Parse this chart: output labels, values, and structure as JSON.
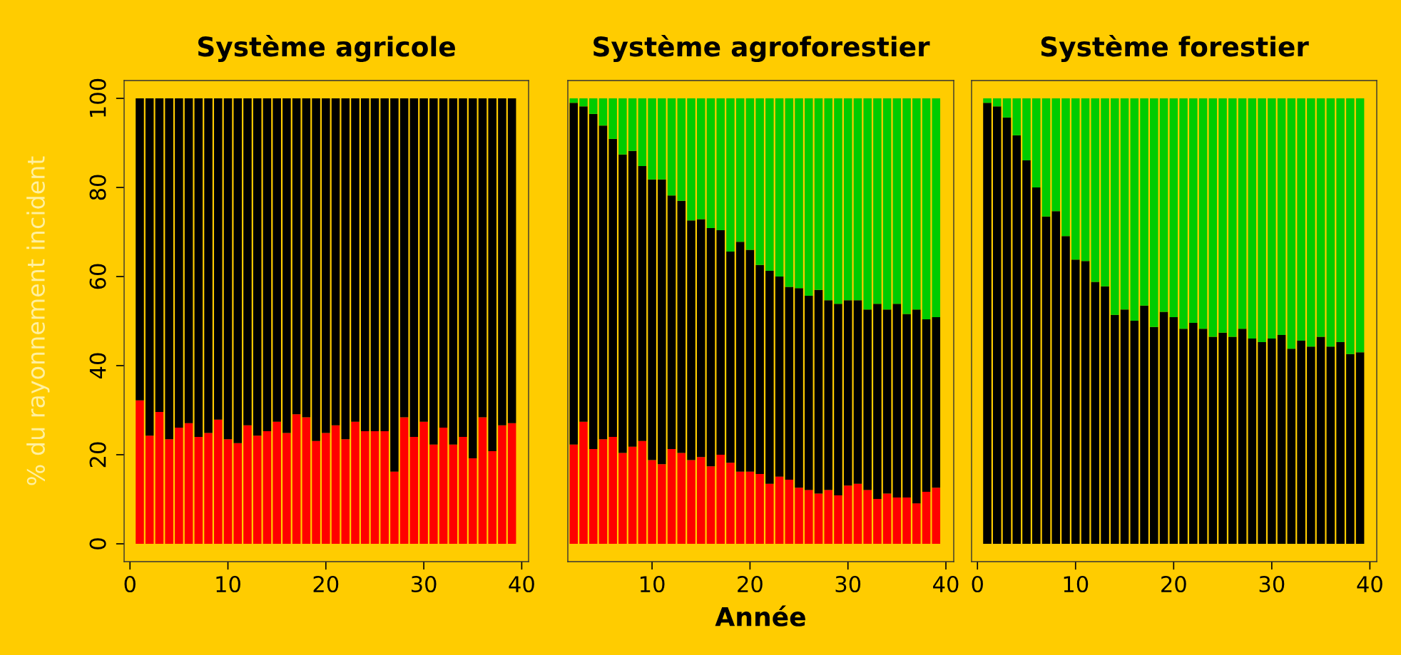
{
  "chart_data": [
    {
      "type": "bar",
      "stacked": true,
      "title": "Système agricole",
      "ylabel": "% du rayonnement incident",
      "x": [
        1,
        2,
        3,
        4,
        5,
        6,
        7,
        8,
        9,
        10,
        11,
        12,
        13,
        14,
        15,
        16,
        17,
        18,
        19,
        20,
        21,
        22,
        23,
        24,
        25,
        26,
        27,
        28,
        29,
        30,
        31,
        32,
        33,
        34,
        35,
        36,
        37,
        38,
        39
      ],
      "series": [
        {
          "color": "#ff0000",
          "values": [
            32.2,
            24.3,
            29.6,
            23.5,
            26.1,
            27.1,
            24.0,
            24.9,
            27.9,
            23.5,
            22.6,
            26.6,
            24.3,
            25.3,
            27.4,
            24.9,
            29.1,
            28.4,
            23.1,
            24.9,
            26.6,
            23.5,
            27.4,
            25.3,
            25.3,
            25.3,
            16.2,
            28.4,
            24.0,
            27.4,
            22.3,
            26.1,
            22.3,
            24.0,
            19.2,
            28.4,
            20.8,
            26.6,
            27.1
          ]
        },
        {
          "color": "#000000",
          "values": [
            67.8,
            75.7,
            70.4,
            76.5,
            73.9,
            72.9,
            76.0,
            75.1,
            72.1,
            76.5,
            77.4,
            73.4,
            75.7,
            74.7,
            72.6,
            75.1,
            70.9,
            71.6,
            76.9,
            75.1,
            73.4,
            76.5,
            72.6,
            74.7,
            74.7,
            74.7,
            83.8,
            71.6,
            76.0,
            72.6,
            77.7,
            73.9,
            77.7,
            76.0,
            80.8,
            71.6,
            79.2,
            73.4,
            72.9
          ]
        }
      ],
      "xlim": [
        -0.6,
        40.7
      ],
      "xticks": [
        0,
        10,
        20,
        30,
        40
      ],
      "ylim": [
        -4,
        104
      ],
      "yticks": [
        0,
        20,
        40,
        60,
        80,
        100
      ]
    },
    {
      "type": "bar",
      "stacked": true,
      "title": "Système agroforestier",
      "xlabel": "Année",
      "x": [
        2,
        3,
        4,
        5,
        6,
        7,
        8,
        9,
        10,
        11,
        12,
        13,
        14,
        15,
        16,
        17,
        18,
        19,
        20,
        21,
        22,
        23,
        24,
        25,
        26,
        27,
        28,
        29,
        30,
        31,
        32,
        33,
        34,
        35,
        36,
        37,
        38,
        39
      ],
      "series": [
        {
          "color": "#ff0000",
          "values": [
            22.3,
            27.4,
            21.3,
            23.5,
            24.0,
            20.4,
            21.8,
            23.1,
            18.8,
            17.9,
            21.3,
            20.4,
            18.8,
            19.5,
            17.4,
            20.0,
            18.2,
            16.2,
            16.2,
            15.7,
            13.5,
            15.1,
            14.4,
            12.6,
            12.1,
            11.3,
            12.1,
            10.9,
            13.1,
            13.5,
            12.1,
            10.1,
            11.3,
            10.4,
            10.4,
            9.1,
            11.7,
            12.6
          ]
        },
        {
          "color": "#000000",
          "values": [
            76.7,
            70.8,
            75.2,
            70.4,
            66.9,
            67.0,
            66.4,
            61.7,
            63.0,
            63.9,
            56.9,
            56.6,
            53.8,
            53.4,
            53.5,
            50.4,
            47.4,
            51.6,
            49.8,
            46.9,
            47.8,
            44.9,
            43.3,
            44.8,
            43.6,
            45.7,
            42.6,
            43.0,
            41.6,
            41.2,
            40.5,
            43.8,
            41.3,
            43.5,
            41.2,
            43.5,
            38.7,
            38.3
          ]
        },
        {
          "color": "#00cc00",
          "values": [
            1.0,
            1.8,
            3.5,
            6.1,
            9.1,
            12.6,
            11.8,
            15.2,
            18.2,
            18.2,
            21.8,
            23.0,
            27.4,
            27.1,
            29.1,
            29.6,
            34.4,
            32.2,
            34.0,
            37.4,
            38.7,
            40.0,
            42.3,
            42.6,
            44.3,
            43.0,
            45.3,
            46.1,
            45.3,
            45.3,
            47.4,
            46.1,
            47.4,
            46.1,
            48.4,
            47.4,
            49.6,
            49.1
          ]
        }
      ],
      "xlim": [
        1.4,
        40.8
      ],
      "xticks": [
        10,
        20,
        30,
        40
      ],
      "ylim": [
        -4,
        104
      ],
      "tick_labels": "x"
    },
    {
      "type": "bar",
      "stacked": true,
      "title": "Système forestier",
      "x": [
        1,
        2,
        3,
        4,
        5,
        6,
        7,
        8,
        9,
        10,
        11,
        12,
        13,
        14,
        15,
        16,
        17,
        18,
        19,
        20,
        21,
        22,
        23,
        24,
        25,
        26,
        27,
        28,
        29,
        30,
        31,
        32,
        33,
        34,
        35,
        36,
        37,
        38,
        39
      ],
      "series": [
        {
          "color": "#000000",
          "values": [
            99.0,
            98.2,
            95.7,
            91.7,
            86.1,
            80.0,
            73.5,
            74.7,
            69.1,
            63.8,
            63.5,
            58.8,
            57.8,
            51.4,
            52.6,
            50.1,
            53.5,
            48.7,
            52.1,
            50.9,
            48.3,
            49.6,
            48.3,
            46.5,
            47.4,
            46.5,
            48.3,
            46.1,
            45.3,
            46.1,
            46.9,
            43.8,
            45.6,
            44.3,
            46.5,
            44.3,
            45.3,
            42.6,
            43.0
          ]
        },
        {
          "color": "#00cc00",
          "values": [
            1.0,
            1.8,
            4.3,
            8.3,
            13.9,
            20.0,
            26.5,
            25.3,
            30.9,
            36.2,
            36.5,
            41.2,
            42.2,
            48.6,
            47.4,
            49.9,
            46.5,
            51.3,
            47.9,
            49.1,
            51.7,
            50.4,
            51.7,
            53.5,
            52.6,
            53.5,
            51.7,
            53.9,
            54.7,
            53.9,
            53.1,
            56.2,
            54.4,
            55.7,
            53.5,
            55.7,
            54.7,
            57.4,
            57.0
          ]
        }
      ],
      "xlim": [
        -0.6,
        40.7
      ],
      "xticks": [
        0,
        10,
        20,
        30,
        40
      ],
      "ylim": [
        -4,
        104
      ],
      "tick_labels": "x"
    }
  ]
}
